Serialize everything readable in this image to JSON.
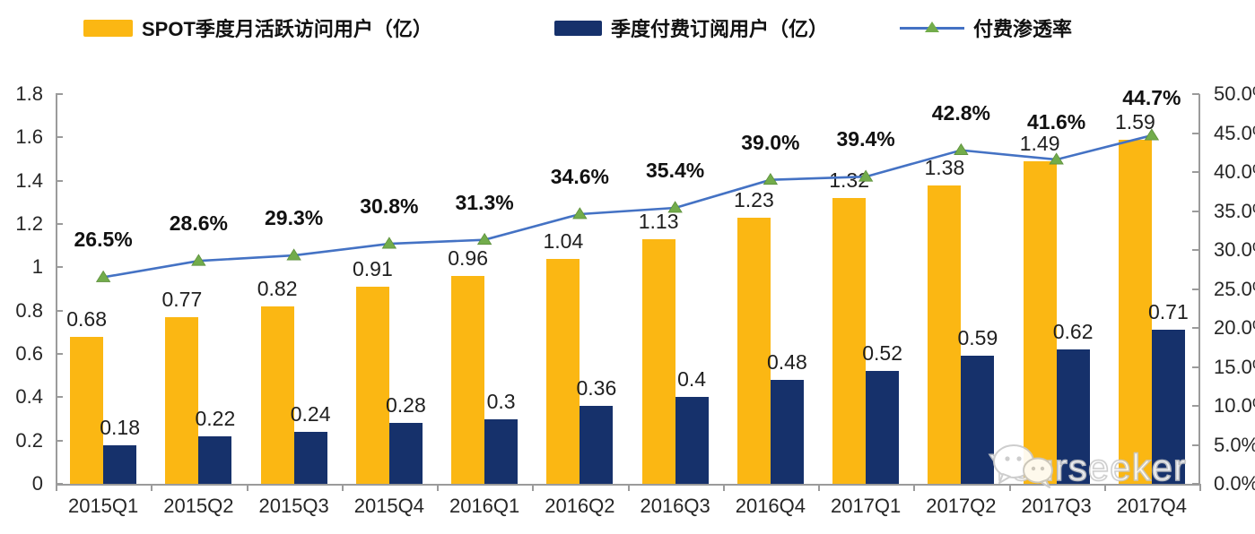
{
  "page": {
    "background": "#ffffff",
    "axis_color": "#9b9b9b",
    "text_color": "#262626"
  },
  "legend": {
    "items": [
      {
        "label": "SPOT季度月活跃访问用户（亿）",
        "type": "bar-swatch",
        "color": "#FBB713"
      },
      {
        "label": "季度付费订阅用户（亿）",
        "type": "bar-swatch",
        "color": "#16316B"
      },
      {
        "label": "付费渗透率",
        "type": "line-marker",
        "line_color": "#4472C4",
        "marker_color": "#72AC4B"
      }
    ]
  },
  "watermark": {
    "text": "Yourseeker",
    "icon": "wechat-icon"
  },
  "chart_data": {
    "type": "bar+line",
    "title": "",
    "xlabel": "",
    "ylabel_left": "",
    "ylabel_right": "",
    "grid": false,
    "legend_position": "top",
    "categories": [
      "2015Q1",
      "2015Q2",
      "2015Q3",
      "2015Q4",
      "2016Q1",
      "2016Q2",
      "2016Q3",
      "2016Q4",
      "2017Q1",
      "2017Q2",
      "2017Q3",
      "2017Q4"
    ],
    "series": [
      {
        "name": "SPOT季度月活跃访问用户（亿）",
        "type": "bar",
        "axis": "left",
        "color": "#FBB713",
        "values": [
          0.68,
          0.77,
          0.82,
          0.91,
          0.96,
          1.04,
          1.13,
          1.23,
          1.32,
          1.38,
          1.49,
          1.59
        ],
        "labels": [
          "0.68",
          "0.77",
          "0.82",
          "0.91",
          "0.96",
          "1.04",
          "1.13",
          "1.23",
          "1.32",
          "1.38",
          "1.49",
          "1.59"
        ]
      },
      {
        "name": "季度付费订阅用户（亿）",
        "type": "bar",
        "axis": "left",
        "color": "#16316B",
        "values": [
          0.18,
          0.22,
          0.24,
          0.28,
          0.3,
          0.36,
          0.4,
          0.48,
          0.52,
          0.59,
          0.62,
          0.71
        ],
        "labels": [
          "0.18",
          "0.22",
          "0.24",
          "0.28",
          "0.3",
          "0.36",
          "0.4",
          "0.48",
          "0.52",
          "0.59",
          "0.62",
          "0.71"
        ]
      },
      {
        "name": "付费渗透率",
        "type": "line",
        "axis": "right",
        "color": "#4472C4",
        "marker": "triangle-up",
        "marker_color": "#72AC4B",
        "values": [
          26.5,
          28.6,
          29.3,
          30.8,
          31.3,
          34.6,
          35.4,
          39.0,
          39.4,
          42.8,
          41.6,
          44.7
        ],
        "labels": [
          "26.5%",
          "28.6%",
          "29.3%",
          "30.8%",
          "31.3%",
          "34.6%",
          "35.4%",
          "39.0%",
          "39.4%",
          "42.8%",
          "41.6%",
          "44.7%"
        ]
      }
    ],
    "left_axis": {
      "min": 0,
      "max": 1.8,
      "step": 0.2,
      "tick_labels": [
        "1.8",
        "1.6",
        "1.4",
        "1.2",
        "1",
        "0.8",
        "0.6",
        "0.4",
        "0.2",
        "0"
      ]
    },
    "right_axis": {
      "min": 0,
      "max": 50,
      "step": 5,
      "unit": "%",
      "tick_labels": [
        "50.0%",
        "45.0%",
        "40.0%",
        "35.0%",
        "30.0%",
        "25.0%",
        "20.0%",
        "15.0%",
        "10.0%",
        "5.0%",
        "0.0%"
      ]
    }
  }
}
